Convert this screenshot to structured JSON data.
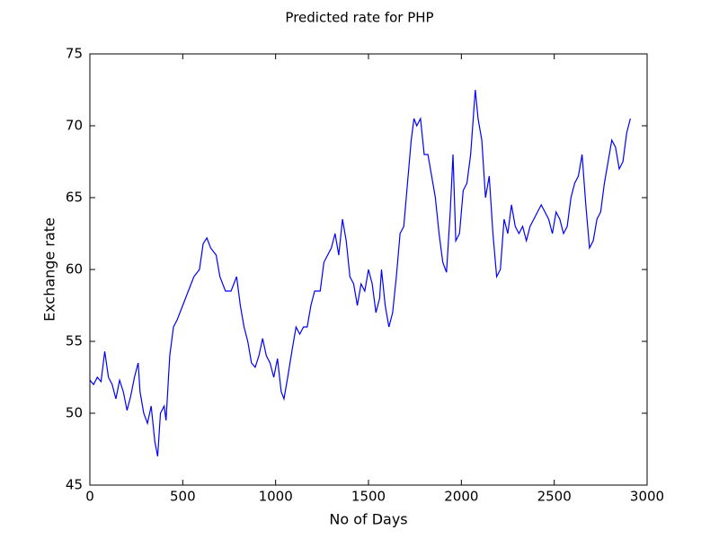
{
  "chart_data": {
    "type": "line",
    "title": "Predicted rate for PHP",
    "x_label": "No of Days",
    "y_label": "Exchange rate",
    "color": "#0000ff",
    "x": [
      0,
      20,
      40,
      60,
      80,
      100,
      120,
      140,
      160,
      180,
      200,
      220,
      240,
      260,
      270,
      290,
      310,
      330,
      350,
      365,
      380,
      400,
      410,
      430,
      450,
      470,
      500,
      530,
      560,
      590,
      610,
      630,
      650,
      680,
      700,
      730,
      760,
      790,
      810,
      830,
      850,
      870,
      890,
      910,
      930,
      950,
      970,
      990,
      1010,
      1030,
      1045,
      1065,
      1090,
      1110,
      1130,
      1150,
      1170,
      1190,
      1210,
      1240,
      1260,
      1280,
      1300,
      1320,
      1340,
      1360,
      1380,
      1400,
      1420,
      1440,
      1460,
      1480,
      1500,
      1520,
      1540,
      1560,
      1570,
      1590,
      1610,
      1630,
      1650,
      1670,
      1690,
      1710,
      1730,
      1745,
      1760,
      1780,
      1800,
      1820,
      1840,
      1860,
      1880,
      1900,
      1920,
      1940,
      1955,
      1970,
      1990,
      2010,
      2030,
      2050,
      2075,
      2090,
      2110,
      2130,
      2150,
      2170,
      2190,
      2210,
      2230,
      2250,
      2270,
      2290,
      2310,
      2330,
      2350,
      2370,
      2390,
      2410,
      2430,
      2450,
      2470,
      2490,
      2510,
      2530,
      2550,
      2570,
      2590,
      2610,
      2630,
      2650,
      2670,
      2690,
      2710,
      2730,
      2750,
      2770,
      2790,
      2810,
      2830,
      2850,
      2870,
      2890,
      2910
    ],
    "values": [
      52.3,
      52.0,
      52.5,
      52.2,
      54.3,
      52.5,
      52.0,
      51.0,
      52.3,
      51.5,
      50.2,
      51.2,
      52.5,
      53.5,
      51.5,
      50.0,
      49.3,
      50.5,
      48.0,
      47.0,
      50.0,
      50.5,
      49.5,
      54.0,
      56.0,
      56.5,
      57.5,
      58.5,
      59.5,
      60.0,
      61.8,
      62.2,
      61.5,
      61.0,
      59.5,
      58.5,
      58.5,
      59.5,
      57.5,
      56.0,
      55.0,
      53.5,
      53.2,
      54.0,
      55.2,
      54.0,
      53.5,
      52.5,
      53.8,
      51.5,
      51.0,
      52.5,
      54.5,
      56.0,
      55.5,
      56.0,
      56.0,
      57.5,
      58.5,
      58.5,
      60.5,
      61.0,
      61.5,
      62.5,
      61.0,
      63.5,
      62.0,
      59.5,
      59.0,
      57.5,
      59.0,
      58.5,
      60.0,
      59.0,
      57.0,
      58.0,
      60.0,
      57.5,
      56.0,
      57.0,
      59.5,
      62.5,
      63.0,
      66.0,
      69.0,
      70.5,
      70.0,
      70.5,
      68.0,
      68.0,
      66.5,
      65.0,
      62.5,
      60.5,
      59.8,
      64.0,
      68.0,
      62.0,
      62.5,
      65.5,
      66.0,
      68.0,
      72.5,
      70.5,
      69.0,
      65.0,
      66.5,
      62.5,
      59.5,
      60.0,
      63.5,
      62.5,
      64.5,
      63.0,
      62.5,
      63.0,
      62.0,
      63.0,
      63.5,
      64.0,
      64.5,
      64.0,
      63.5,
      62.5,
      64.0,
      63.5,
      62.5,
      63.0,
      65.0,
      66.0,
      66.5,
      68.0,
      64.5,
      61.5,
      62.0,
      63.5,
      64.0,
      66.0,
      67.5,
      69.0,
      68.5,
      67.0,
      67.5,
      69.5,
      70.5
    ],
    "xlim": [
      0,
      3000
    ],
    "xticks": [
      0,
      500,
      1000,
      1500,
      2000,
      2500,
      3000
    ],
    "ylim": [
      45,
      75
    ],
    "yticks": [
      45,
      50,
      55,
      60,
      65,
      70,
      75
    ]
  }
}
